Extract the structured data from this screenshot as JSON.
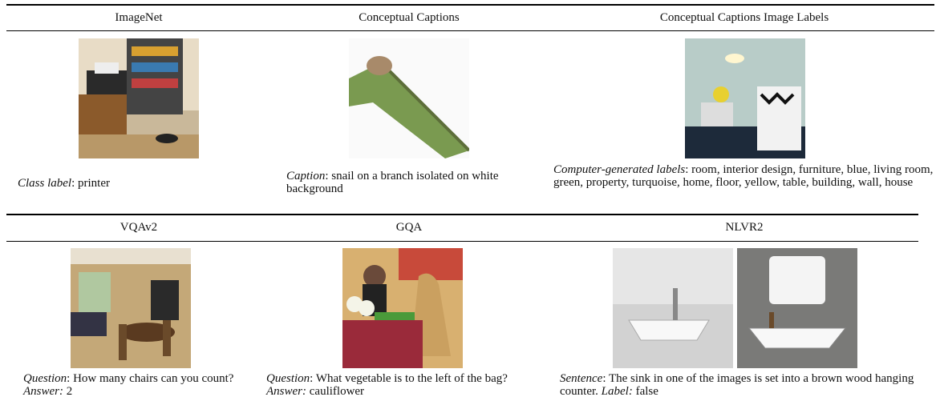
{
  "rows": [
    {
      "columns": [
        {
          "header": "ImageNet",
          "caption": [
            {
              "text": "Class label",
              "italic": true
            },
            {
              "text": ": printer"
            }
          ]
        },
        {
          "header": "Conceptual Captions",
          "caption": [
            {
              "text": "Caption",
              "italic": true
            },
            {
              "text": ": snail on a branch isolated on white background"
            }
          ]
        },
        {
          "header": "Conceptual Captions Image Labels",
          "caption": [
            {
              "text": "Computer-generated labels",
              "italic": true
            },
            {
              "text": ": room, interior design, furniture, blue, living room, green, property, turquoise, home, floor, yellow, table, building, wall, house"
            }
          ]
        }
      ]
    },
    {
      "columns": [
        {
          "header": "VQAv2",
          "caption": [
            {
              "text": "Question",
              "italic": true
            },
            {
              "text": ": How many chairs can you count? "
            },
            {
              "text": "Answer:",
              "italic": true
            },
            {
              "text": " 2"
            }
          ]
        },
        {
          "header": "GQA",
          "caption": [
            {
              "text": "Question",
              "italic": true
            },
            {
              "text": ": What vegetable is to the left of the bag? "
            },
            {
              "text": "Answer:",
              "italic": true
            },
            {
              "text": " cauliflower"
            }
          ]
        },
        {
          "header": "NLVR2",
          "caption": [
            {
              "text": "Sentence",
              "italic": true
            },
            {
              "text": ": The sink in one of the images is set into a brown wood hanging counter. "
            },
            {
              "text": "Label:",
              "italic": true
            },
            {
              "text": " false"
            }
          ]
        }
      ]
    }
  ]
}
